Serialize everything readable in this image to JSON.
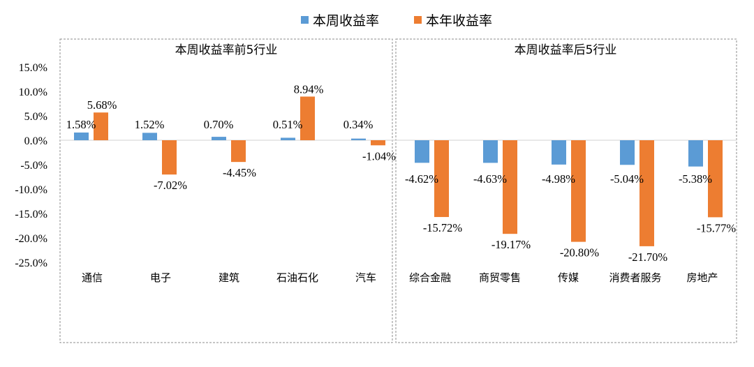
{
  "legend": [
    {
      "name": "本周收益率",
      "color": "#5b9bd5"
    },
    {
      "name": "本年收益率",
      "color": "#ed7d31"
    }
  ],
  "y_ticks": [
    "15.0%",
    "10.0%",
    "5.0%",
    "0.0%",
    "-5.0%",
    "-10.0%",
    "-15.0%",
    "-20.0%",
    "-25.0%"
  ],
  "chart_data": [
    {
      "type": "bar",
      "title": "本周收益率前5行业",
      "categories": [
        "通信",
        "电子",
        "建筑",
        "石油石化",
        "汽车"
      ],
      "series": [
        {
          "name": "本周收益率",
          "values": [
            1.58,
            1.52,
            0.7,
            0.51,
            0.34
          ]
        },
        {
          "name": "本年收益率",
          "values": [
            5.68,
            -7.02,
            -4.45,
            8.94,
            -1.04
          ]
        }
      ],
      "data_labels": {
        "本周收益率": [
          "1.58%",
          "1.52%",
          "0.70%",
          "0.51%",
          "0.34%"
        ],
        "本年收益率": [
          "5.68%",
          "-7.02%",
          "-4.45%",
          "8.94%",
          "-1.04%"
        ]
      },
      "ylim": [
        -25,
        15
      ],
      "grid": false
    },
    {
      "type": "bar",
      "title": "本周收益率后5行业",
      "categories": [
        "综合金融",
        "商贸零售",
        "传媒",
        "消费者服务",
        "房地产"
      ],
      "series": [
        {
          "name": "本周收益率",
          "values": [
            -4.62,
            -4.63,
            -4.98,
            -5.04,
            -5.38
          ]
        },
        {
          "name": "本年收益率",
          "values": [
            -15.72,
            -19.17,
            -20.8,
            -21.7,
            -15.77
          ]
        }
      ],
      "data_labels": {
        "本周收益率": [
          "-4.62%",
          "-4.63%",
          "-4.98%",
          "-5.04%",
          "-5.38%"
        ],
        "本年收益率": [
          "-15.72%",
          "-19.17%",
          "-20.80%",
          "-21.70%",
          "-15.77%"
        ]
      },
      "ylim": [
        -25,
        15
      ],
      "grid": false
    }
  ]
}
